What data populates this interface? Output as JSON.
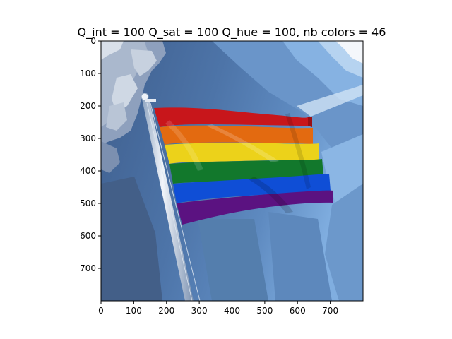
{
  "figure": {
    "title": "Q_int = 100 Q_sat = 100 Q_hue = 100, nb colors = 46"
  },
  "image": {
    "subject": "rainbow-pride-flag-on-flagpole",
    "flag_stripe_colors": [
      "#c8161b",
      "#e36a10",
      "#ecd21a",
      "#12782c",
      "#0f4ed6",
      "#5b1281"
    ],
    "sky_palette": [
      "#4a6b9a",
      "#5a86bd",
      "#7aa8de",
      "#a9c7ea",
      "#e8eef6"
    ]
  },
  "axes": {
    "x_ticks": [
      "0",
      "100",
      "200",
      "300",
      "400",
      "500",
      "600",
      "700"
    ],
    "y_ticks": [
      "0",
      "100",
      "200",
      "300",
      "400",
      "500",
      "600",
      "700"
    ],
    "x_range": [
      0,
      800
    ],
    "y_range": [
      0,
      800
    ]
  }
}
